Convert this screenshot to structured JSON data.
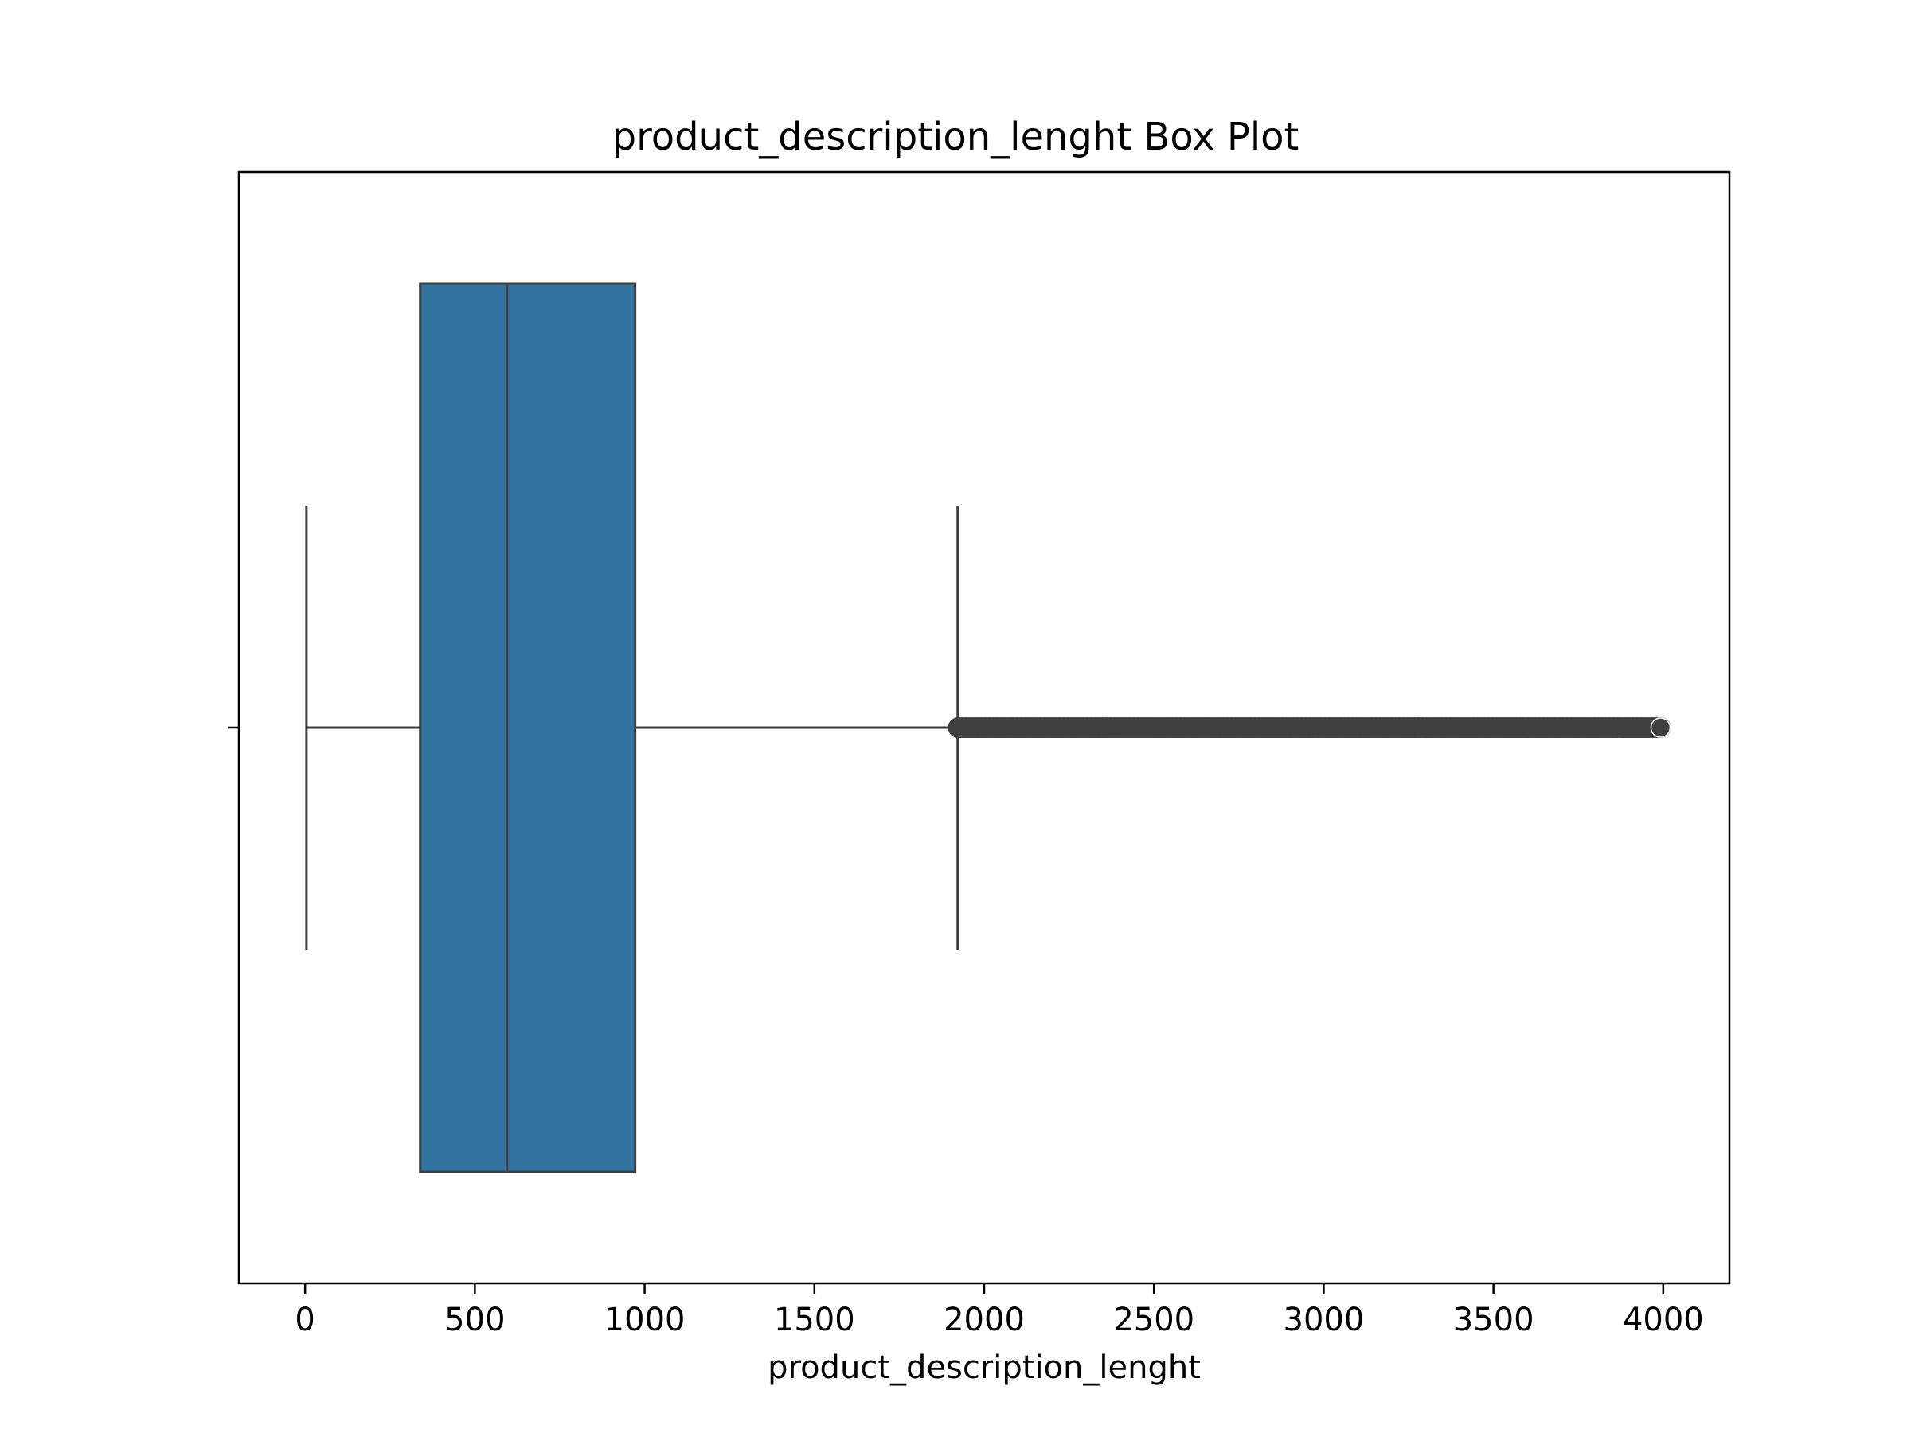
{
  "chart_data": {
    "type": "box",
    "title": "product_description_lenght Box Plot",
    "xlabel": "product_description_lenght",
    "ylabel": "",
    "xlim": [
      -195,
      4195
    ],
    "xticks": [
      0,
      500,
      1000,
      1500,
      2000,
      2500,
      3000,
      3500,
      4000
    ],
    "xtick_labels": [
      "0",
      "500",
      "1000",
      "1500",
      "2000",
      "2500",
      "3000",
      "3500",
      "4000"
    ],
    "orientation": "horizontal",
    "grid": false,
    "box": {
      "whisker_low": 4,
      "q1": 339,
      "median": 595,
      "q3": 972,
      "whisker_high": 1922
    },
    "outliers": {
      "min": 1924,
      "max": 3992,
      "note": "dense continuous outlier points spanning the range"
    },
    "colors": {
      "box_fill": "#3274a1",
      "line": "#3f3f3f",
      "axes": "#000000"
    }
  }
}
